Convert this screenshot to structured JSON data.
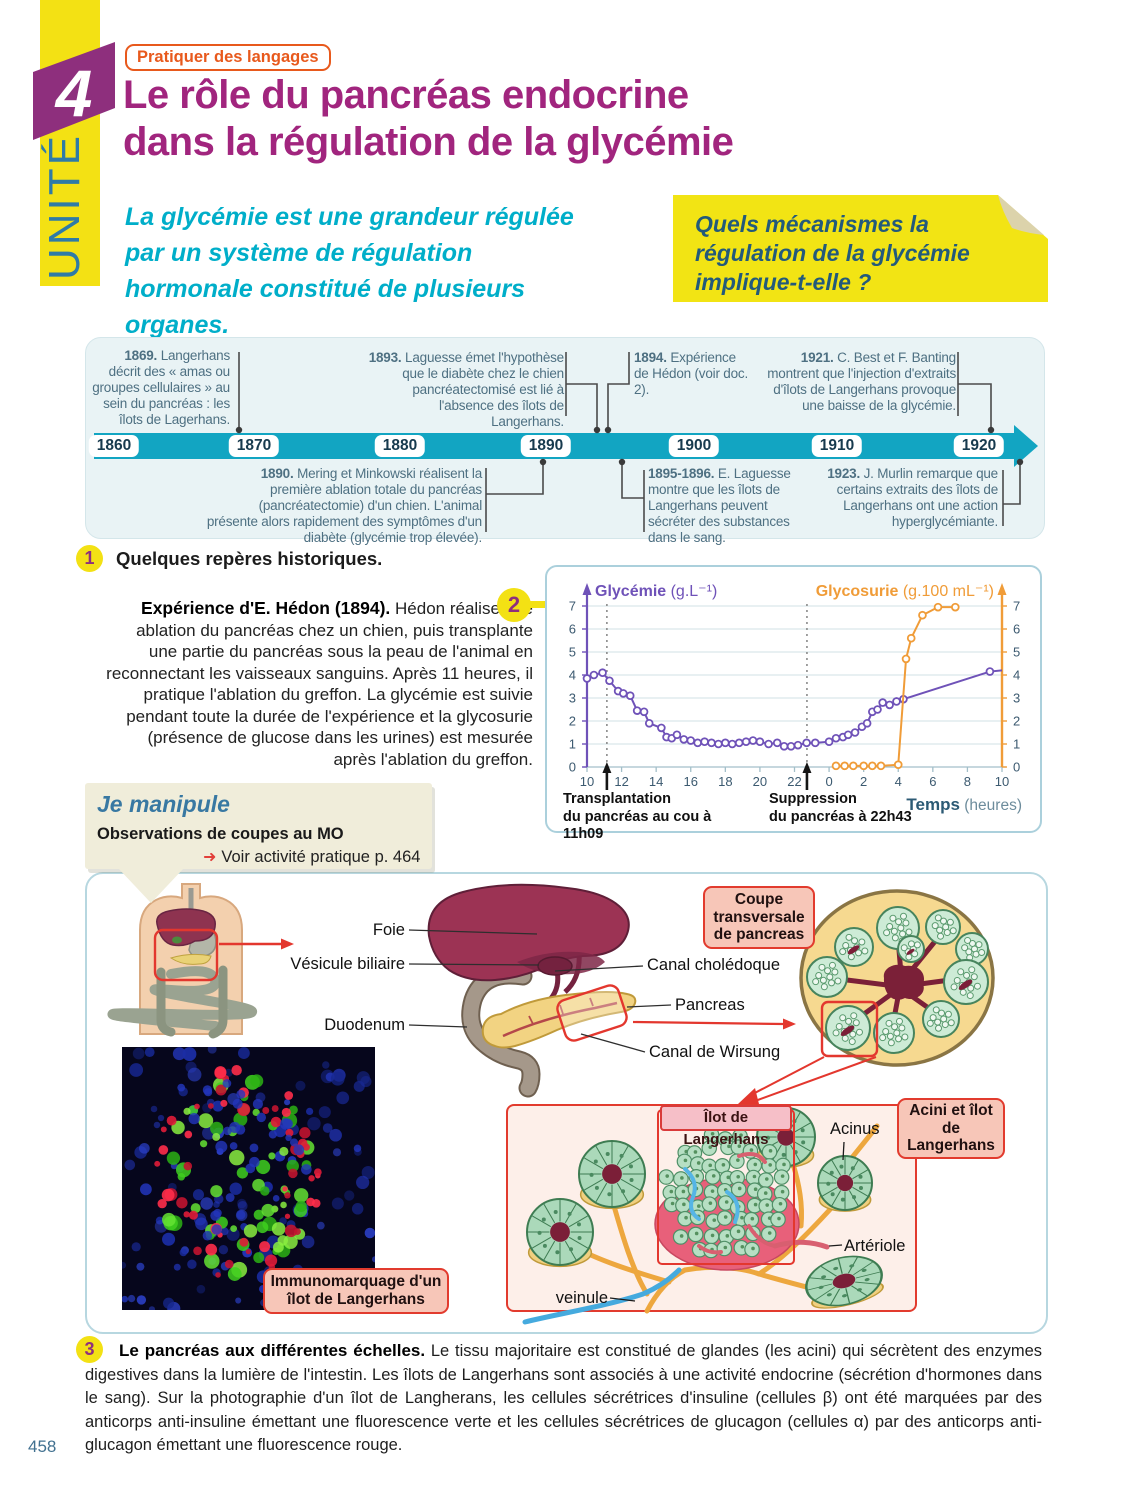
{
  "page": {
    "number": "458"
  },
  "unit": {
    "label": "UNITÉ",
    "number": "4"
  },
  "colors": {
    "accent_purple": "#a1257e",
    "accent_yellow": "#f3e114",
    "timeline_teal": "#12a5c2",
    "chart_purple": "#6f52b8",
    "chart_orange": "#f09c38",
    "figure_red": "#e3372e"
  },
  "header": {
    "tag": "Pratiquer des langages",
    "title_line1": "Le rôle du pancréas endocrine",
    "title_line2": "dans la régulation de la glycémie",
    "intro": "La glycémie est une grandeur régulée par un système de régulation hormonale constitué de plusieurs organes.",
    "question": "Quels mécanismes la régulation de la glycémie implique-t-elle ?"
  },
  "timeline": {
    "years": [
      "1860",
      "1870",
      "1880",
      "1890",
      "1900",
      "1910",
      "1920"
    ],
    "events_top": [
      {
        "year": "1869.",
        "text": "Langerhans décrit des « amas ou groupes cellulaires » au sein du pancréas : les îlots de Lagerhans."
      },
      {
        "year": "1893.",
        "text": "Laguesse émet l'hypothèse que le diabète chez le chien pancréatectomisé est lié à l'absence des îlots de Langerhans."
      },
      {
        "year": "1894.",
        "text": "Expérience de Hédon (voir doc. 2)."
      },
      {
        "year": "1921.",
        "text": "C. Best et F. Banting montrent que l'injection d'extraits d'îlots de Langerhans provoque une baisse de la glycémie."
      }
    ],
    "events_bottom": [
      {
        "year": "1890.",
        "text": "Mering et Minkowski réalisent la première ablation totale du pancréas (pancréatectomie) d'un chien. L'animal présente alors rapidement des symptômes d'un diabète (glycémie trop élevée)."
      },
      {
        "year": "1895-1896.",
        "text": "E. Laguesse montre que les îlots de Langerhans peuvent sécréter des substances dans le sang."
      },
      {
        "year": "1923.",
        "text": "J. Murlin remarque que certains extraits des îlots de Langerhans ont une action hyperglycémiante."
      }
    ]
  },
  "doc1": {
    "number": "1",
    "title": "Quelques repères historiques."
  },
  "doc2": {
    "number": "2",
    "lead": "Expérience d'E. Hédon (1894).",
    "body": "Hédon réalise une ablation du pancréas chez un chien, puis transplante une partie du pancréas sous la peau de l'animal en reconnectant les vaisseaux sanguins. Après 11 heures, il pratique l'ablation du greffon. La glycémie est suivie pendant toute la durée de l'expérience et la glycosurie (présence de glucose dans les urines) est mesurée après l'ablation du greffon."
  },
  "chart_data": {
    "type": "line",
    "x_axis": {
      "label_bold": "Temps",
      "label_rest": " (heures)",
      "range_hours": [
        10,
        34
      ],
      "tick_hours": [
        10,
        12,
        14,
        16,
        18,
        20,
        22,
        24,
        26,
        28,
        30,
        32,
        34
      ],
      "tick_labels": [
        "10",
        "12",
        "14",
        "16",
        "18",
        "20",
        "22",
        "0",
        "2",
        "4",
        "6",
        "8",
        "10"
      ]
    },
    "y_left": {
      "label": "Glycémie (g.L⁻¹)",
      "color": "#6f52b8",
      "range": [
        0,
        7
      ],
      "ticks": [
        0,
        1,
        2,
        3,
        4,
        5,
        6,
        7
      ]
    },
    "y_right": {
      "label": "Glycosurie (g.100 mL⁻¹)",
      "color": "#f09c38",
      "range": [
        0,
        7
      ],
      "ticks": [
        0,
        1,
        2,
        3,
        4,
        5,
        6,
        7
      ]
    },
    "grid": true,
    "legend_position": "top",
    "series": [
      {
        "name": "Glycémie",
        "axis": "left",
        "color": "#6f52b8",
        "last_marker": false,
        "points": [
          [
            10,
            3.85
          ],
          [
            10.4,
            4.0
          ],
          [
            10.9,
            4.1
          ],
          [
            11.3,
            3.75
          ],
          [
            11.8,
            3.3
          ],
          [
            12.1,
            3.2
          ],
          [
            12.5,
            3.1
          ],
          [
            12.9,
            2.45
          ],
          [
            13.3,
            2.4
          ],
          [
            13.6,
            1.9
          ],
          [
            14.3,
            1.7
          ],
          [
            14.6,
            1.3
          ],
          [
            14.9,
            1.25
          ],
          [
            15.2,
            1.4
          ],
          [
            15.6,
            1.2
          ],
          [
            16.0,
            1.15
          ],
          [
            16.4,
            1.05
          ],
          [
            16.8,
            1.1
          ],
          [
            17.2,
            1.05
          ],
          [
            17.6,
            1.0
          ],
          [
            18.0,
            1.05
          ],
          [
            18.4,
            1.0
          ],
          [
            18.8,
            1.05
          ],
          [
            19.2,
            1.1
          ],
          [
            19.6,
            1.15
          ],
          [
            20.0,
            1.1
          ],
          [
            20.5,
            1.0
          ],
          [
            21.0,
            1.05
          ],
          [
            21.4,
            0.9
          ],
          [
            21.8,
            0.9
          ],
          [
            22.2,
            0.95
          ],
          [
            22.7,
            1.05
          ],
          [
            23.2,
            1.05
          ],
          [
            24.0,
            1.1
          ],
          [
            24.4,
            1.25
          ],
          [
            24.8,
            1.3
          ],
          [
            25.1,
            1.4
          ],
          [
            25.5,
            1.5
          ],
          [
            25.9,
            1.75
          ],
          [
            26.2,
            1.9
          ],
          [
            26.5,
            2.4
          ],
          [
            26.8,
            2.5
          ],
          [
            27.1,
            2.8
          ],
          [
            27.5,
            2.7
          ],
          [
            27.9,
            2.85
          ],
          [
            28.3,
            2.95
          ],
          [
            33.3,
            4.15
          ],
          [
            34,
            4.2
          ]
        ]
      },
      {
        "name": "Glycosurie",
        "axis": "right",
        "color": "#f09c38",
        "last_marker": true,
        "points": [
          [
            24.4,
            0.05
          ],
          [
            24.9,
            0.05
          ],
          [
            25.4,
            0.05
          ],
          [
            26.0,
            0.05
          ],
          [
            26.5,
            0.05
          ],
          [
            27.0,
            0.05
          ],
          [
            28.0,
            0.1
          ],
          [
            28.45,
            4.7
          ],
          [
            28.75,
            5.6
          ],
          [
            29.4,
            6.6
          ],
          [
            30.3,
            6.95
          ],
          [
            31.3,
            6.95
          ]
        ]
      }
    ],
    "events": [
      {
        "hour": 11.15,
        "line1": "Transplantation",
        "line2": "du pancréas au cou à 11h09"
      },
      {
        "hour": 22.72,
        "line1": "Suppression",
        "line2": "du pancréas à 22h43"
      }
    ]
  },
  "manipule": {
    "title": "Je manipule",
    "subtitle": "Observations de coupes au MO",
    "icon": "➜",
    "link": "Voir activité pratique p. 464"
  },
  "figure": {
    "labels": {
      "foie": "Foie",
      "vesicule": "Vésicule biliaire",
      "duodenum": "Duodenum",
      "choledoque": "Canal cholédoque",
      "pancreas": "Pancreas",
      "wirsung": "Canal de Wirsung",
      "coupe": "Coupe transversale de pancreas",
      "acini_ilot": "Acini et îlot de Langerhans",
      "ilot": "Îlot de Langerhans",
      "acinus": "Acinus",
      "arteriole": "Artériole",
      "veinule": "veinule",
      "immuno": "Immunomarquage d'un îlot de Langerhans"
    }
  },
  "doc3": {
    "number": "3",
    "lead": "Le pancréas aux différentes échelles.",
    "body": "Le tissu majoritaire est constitué de glandes (les acini) qui sécrètent des enzymes digestives dans la lumière de l'intestin. Les îlots de Langerhans sont associés à une activité endocrine (sécrétion d'hormones dans le sang). Sur la photographie d'un îlot de Langherans, les cellules sécrétrices d'insuline (cellules β) ont été marquées par des anticorps anti-insuline émettant une fluorescence verte et les cellules sécrétrices de glucagon (cellules α) par des anticorps anti-glucagon émettant une fluorescence rouge."
  }
}
